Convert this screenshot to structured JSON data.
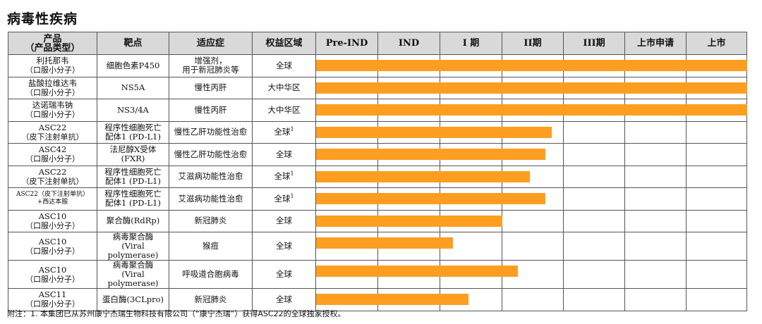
{
  "title": "病毒性疾病",
  "headers": {
    "product": "产品",
    "product_sub": "（产品类型）",
    "target": "靶点",
    "indication": "适应症",
    "region": "权益区域",
    "stages": [
      "Pre-IND",
      "IND",
      "I 期",
      "II期",
      "III期",
      "上市申请",
      "上市"
    ]
  },
  "footnote": "附注：1. 本集团已从苏州康宁杰瑞生物科技有限公司（“康宁杰瑞”）获得ASC22的全球独家授权。",
  "colors": {
    "bar": "#fd9e21",
    "header_bg": "#d9d9d9"
  },
  "chart_data": {
    "type": "bar",
    "orientation": "horizontal",
    "stage_axis": [
      "Pre-IND",
      "IND",
      "I 期",
      "II期",
      "III期",
      "上市申请",
      "上市"
    ],
    "rows": [
      {
        "product": "利托那韦",
        "type": "（口服小分子）",
        "target": "细胞色素P450",
        "indication": "增强剂，\n用于新冠肺炎等",
        "region": "全球",
        "region_note": "",
        "progress": 7.0
      },
      {
        "product": "盐酸拉维达韦",
        "type": "（口服小分子）",
        "target": "NS5A",
        "indication": "慢性丙肝",
        "region": "大中华区",
        "region_note": "",
        "progress": 7.0
      },
      {
        "product": "达诺瑞韦钠",
        "type": "（口服小分子）",
        "target": "NS3/4A",
        "indication": "慢性丙肝",
        "region": "大中华区",
        "region_note": "",
        "progress": 7.0
      },
      {
        "product": "ASC22",
        "type": "（皮下注射单抗）",
        "target": "程序性细胞死亡\n配体1 (PD-L1)",
        "indication": "慢性乙肝功能性治愈",
        "region": "全球",
        "region_note": "1",
        "progress": 3.8
      },
      {
        "product": "ASC42",
        "type": "（口服小分子）",
        "target": "法尼醇X受体\n(FXR)",
        "indication": "慢性乙肝功能性治愈",
        "region": "全球",
        "region_note": "",
        "progress": 3.7
      },
      {
        "product": "ASC22",
        "type": "（皮下注射单抗）",
        "target": "程序性细胞死亡\n配体1 (PD-L1)",
        "indication": "艾滋病功能性治愈",
        "region": "全球",
        "region_note": "1",
        "progress": 3.45
      },
      {
        "product": "ASC22（皮下注射单抗）",
        "type": "+西达本胺",
        "target": "程序性细胞死亡\n配体1 (PD-L1)",
        "indication": "艾滋病功能性治愈",
        "region": "全球",
        "region_note": "1",
        "progress": 3.7
      },
      {
        "product": "ASC10",
        "type": "（口服小分子）",
        "target": "聚合酶(RdRp)",
        "indication": "新冠肺炎",
        "region": "全球",
        "region_note": "",
        "progress": 3.0
      },
      {
        "product": "ASC10",
        "type": "（口服小分子）",
        "target": "病毒聚合酶\n(Viral polymerase)",
        "indication": "猴痘",
        "region": "全球",
        "region_note": "",
        "progress": 2.2
      },
      {
        "product": "ASC10",
        "type": "（口服小分子）",
        "target": "病毒聚合酶\n(Viral polymerase)",
        "indication": "呼吸道合胞病毒",
        "region": "全球",
        "region_note": "",
        "progress": 3.25
      },
      {
        "product": "ASC11",
        "type": "（口服小分子）",
        "target": "蛋白酶(3CLpro)",
        "indication": "新冠肺炎",
        "region": "全球",
        "region_note": "",
        "progress": 2.45
      }
    ]
  }
}
